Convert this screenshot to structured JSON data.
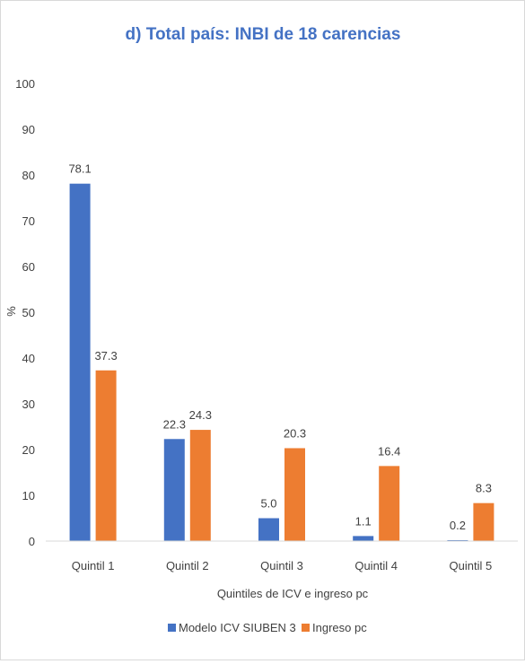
{
  "chart_data": {
    "type": "bar",
    "title": "d) Total país: INBI de 18 carencias",
    "xlabel": "Quintiles de ICV e ingreso pc",
    "ylabel": "%",
    "ylim": [
      0,
      100
    ],
    "yticks": [
      0,
      10,
      20,
      30,
      40,
      50,
      60,
      70,
      80,
      90,
      100
    ],
    "grid": false,
    "legend_position": "bottom",
    "categories": [
      "Quintil 1",
      "Quintil 2",
      "Quintil 3",
      "Quintil 4",
      "Quintil 5"
    ],
    "series": [
      {
        "name": "Modelo ICV SIUBEN 3",
        "color": "#4472c4",
        "values": [
          78.1,
          22.3,
          5.0,
          1.1,
          0.2
        ]
      },
      {
        "name": "Ingreso pc",
        "color": "#ed7d31",
        "values": [
          37.3,
          24.3,
          20.3,
          16.4,
          8.3
        ]
      }
    ]
  }
}
